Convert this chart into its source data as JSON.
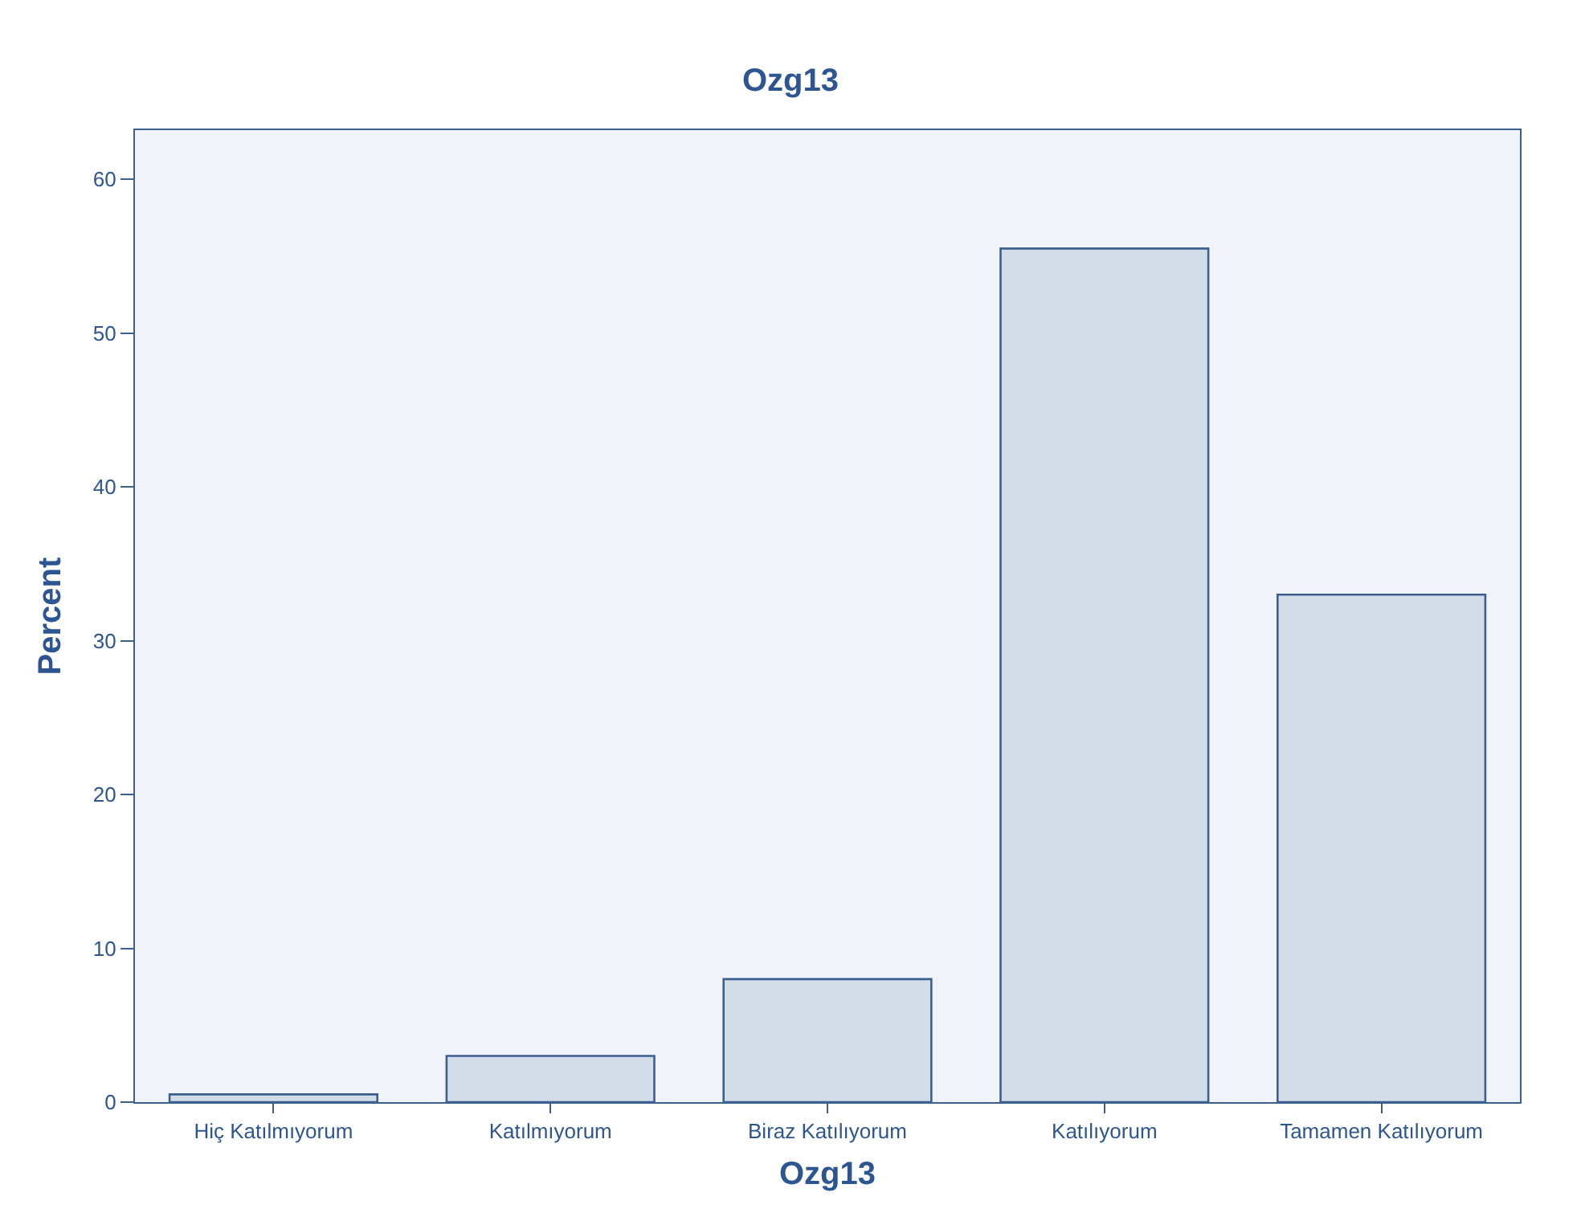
{
  "chart_data": {
    "type": "bar",
    "title": "Ozg13",
    "xlabel": "Ozg13",
    "ylabel": "Percent",
    "categories": [
      "Hiç Katılmıyorum",
      "Katılmıyorum",
      "Biraz Katılıyorum",
      "Katılıyorum",
      "Tamamen Katılıyorum"
    ],
    "values": [
      0.5,
      3.0,
      8.0,
      55.5,
      33.0
    ],
    "color": "#d3dde8",
    "ylim": [
      0,
      63.2
    ],
    "yticks": [
      0,
      10,
      20,
      30,
      40,
      50,
      60
    ],
    "grid": false,
    "legend": false
  }
}
